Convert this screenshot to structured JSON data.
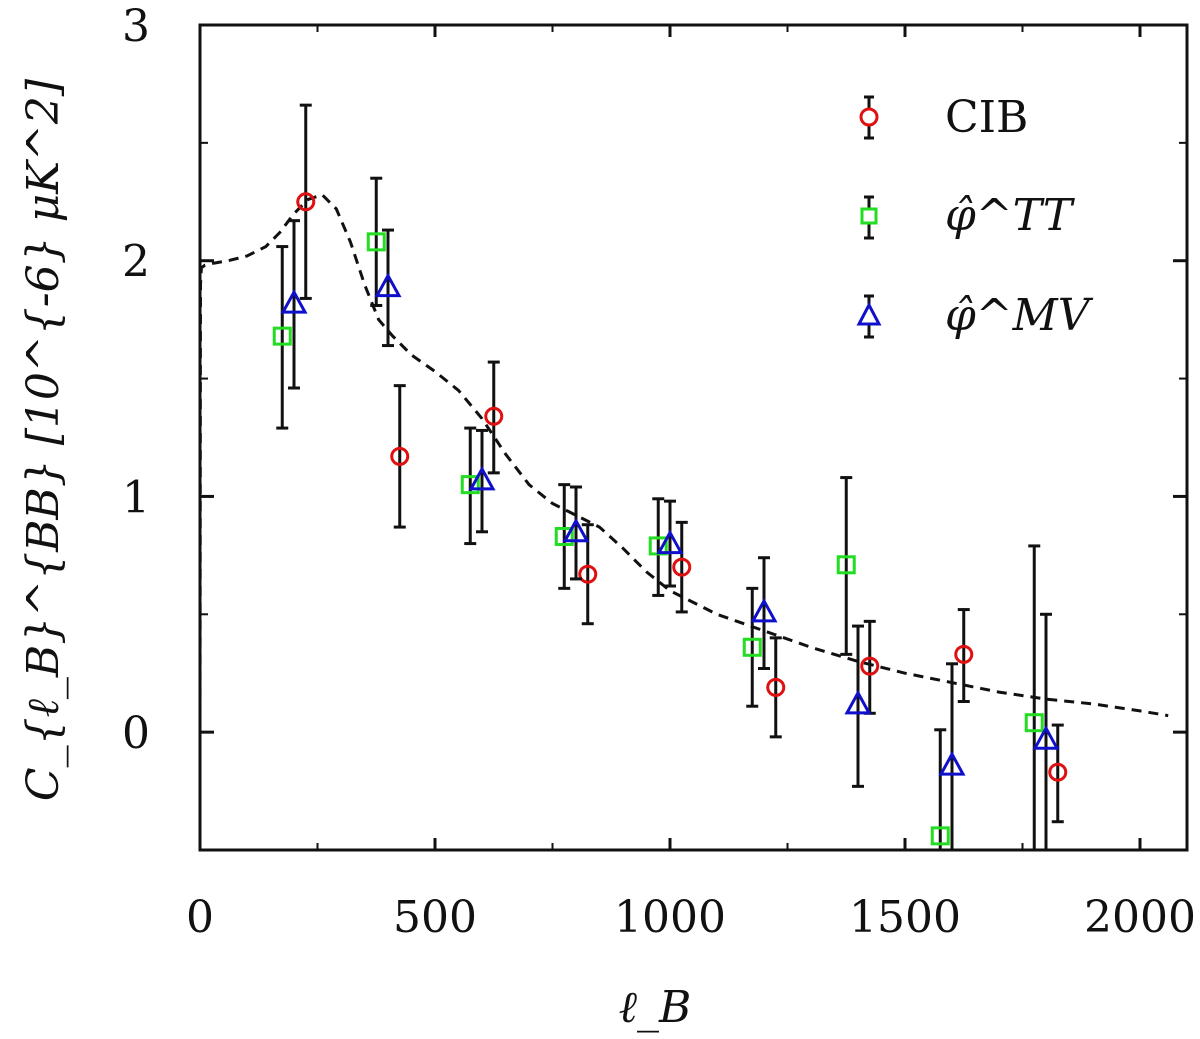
{
  "chart_data": {
    "type": "scatter",
    "title": "",
    "xlabel": "ℓ_B",
    "ylabel": "C_{ℓ_B}^{BB} [10^{-6} μK^2]",
    "xlim": [
      0,
      2100
    ],
    "ylim": [
      -0.5,
      3
    ],
    "x_ticks": [
      0,
      500,
      1000,
      1500,
      2000
    ],
    "x_tick_labels": [
      "0",
      "500",
      "1000",
      "1500",
      "2000"
    ],
    "y_ticks": [
      0,
      1,
      2,
      3
    ],
    "y_tick_labels": [
      "0",
      "1",
      "2",
      "3"
    ],
    "y_minor_ticks": [
      -0.5,
      0.5,
      1.5,
      2.5
    ],
    "grid": false,
    "legend_position": "top-right",
    "series": [
      {
        "name": "CIB",
        "marker": "circle",
        "color": "#e01010",
        "points": [
          {
            "x": 225,
            "y": 2.25,
            "lo": 1.84,
            "hi": 2.66
          },
          {
            "x": 425,
            "y": 1.17,
            "lo": 0.87,
            "hi": 1.47
          },
          {
            "x": 625,
            "y": 1.34,
            "lo": 1.1,
            "hi": 1.57
          },
          {
            "x": 825,
            "y": 0.67,
            "lo": 0.46,
            "hi": 0.88
          },
          {
            "x": 1025,
            "y": 0.7,
            "lo": 0.51,
            "hi": 0.89
          },
          {
            "x": 1225,
            "y": 0.19,
            "lo": -0.02,
            "hi": 0.4
          },
          {
            "x": 1425,
            "y": 0.28,
            "lo": 0.08,
            "hi": 0.47
          },
          {
            "x": 1625,
            "y": 0.33,
            "lo": 0.13,
            "hi": 0.52
          },
          {
            "x": 1825,
            "y": -0.17,
            "lo": -0.38,
            "hi": 0.03
          }
        ]
      },
      {
        "name": "φ̂^TT",
        "marker": "square",
        "color": "#22dd22",
        "points": [
          {
            "x": 175,
            "y": 1.68,
            "lo": 1.29,
            "hi": 2.06
          },
          {
            "x": 375,
            "y": 2.08,
            "lo": 1.81,
            "hi": 2.35
          },
          {
            "x": 575,
            "y": 1.05,
            "lo": 0.8,
            "hi": 1.29
          },
          {
            "x": 775,
            "y": 0.83,
            "lo": 0.61,
            "hi": 1.05
          },
          {
            "x": 975,
            "y": 0.79,
            "lo": 0.58,
            "hi": 0.99
          },
          {
            "x": 1175,
            "y": 0.36,
            "lo": 0.11,
            "hi": 0.61
          },
          {
            "x": 1375,
            "y": 0.71,
            "lo": 0.33,
            "hi": 1.08
          },
          {
            "x": 1575,
            "y": -0.44,
            "lo": -0.5,
            "hi": 0.01
          },
          {
            "x": 1775,
            "y": 0.04,
            "lo": -0.5,
            "hi": 0.79
          }
        ]
      },
      {
        "name": "φ̂^MV",
        "marker": "triangle",
        "color": "#1010cc",
        "points": [
          {
            "x": 200,
            "y": 1.82,
            "lo": 1.46,
            "hi": 2.17
          },
          {
            "x": 400,
            "y": 1.89,
            "lo": 1.64,
            "hi": 2.13
          },
          {
            "x": 600,
            "y": 1.07,
            "lo": 0.85,
            "hi": 1.28
          },
          {
            "x": 800,
            "y": 0.85,
            "lo": 0.65,
            "hi": 1.04
          },
          {
            "x": 1000,
            "y": 0.8,
            "lo": 0.62,
            "hi": 0.98
          },
          {
            "x": 1200,
            "y": 0.51,
            "lo": 0.27,
            "hi": 0.74
          },
          {
            "x": 1400,
            "y": 0.12,
            "lo": -0.23,
            "hi": 0.45
          },
          {
            "x": 1600,
            "y": -0.14,
            "lo": -0.5,
            "hi": 0.29
          },
          {
            "x": 1800,
            "y": -0.03,
            "lo": -0.5,
            "hi": 0.5
          }
        ]
      }
    ],
    "theory_curve": {
      "style": "dashed",
      "color": "#111111",
      "x": [
        0,
        1,
        3,
        10,
        30,
        60,
        100,
        140,
        170,
        200,
        230,
        260,
        290,
        320,
        350,
        380,
        410,
        450,
        500,
        550,
        600,
        650,
        700,
        750,
        800,
        850,
        900,
        950,
        1000,
        1100,
        1200,
        1300,
        1400,
        1500,
        1600,
        1700,
        1800,
        1900,
        2000,
        2060
      ],
      "y": [
        0.0,
        1.9,
        1.97,
        1.98,
        1.99,
        2.0,
        2.02,
        2.06,
        2.12,
        2.2,
        2.26,
        2.28,
        2.22,
        2.08,
        1.9,
        1.75,
        1.68,
        1.6,
        1.53,
        1.45,
        1.33,
        1.18,
        1.05,
        0.97,
        0.92,
        0.87,
        0.78,
        0.68,
        0.6,
        0.5,
        0.43,
        0.36,
        0.3,
        0.25,
        0.21,
        0.17,
        0.14,
        0.12,
        0.09,
        0.07
      ]
    }
  }
}
